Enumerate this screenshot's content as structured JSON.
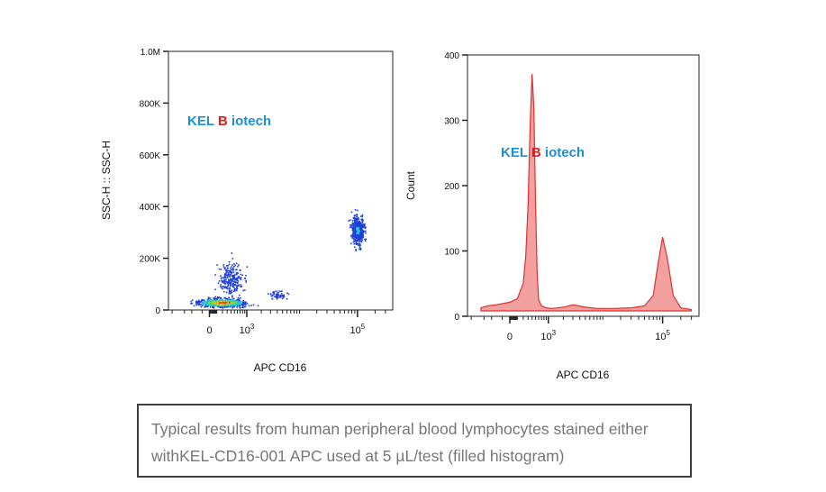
{
  "chart_data": [
    {
      "type": "scatter",
      "title": "",
      "xlabel": "APC CD16",
      "ylabel": "SSC-H :: SSC-H",
      "x_scale": "biexponential",
      "x_ticks": [
        {
          "label": "0",
          "exp": ""
        },
        {
          "label": "10",
          "exp": "3"
        },
        {
          "label": "10",
          "exp": "5"
        }
      ],
      "y_ticks": [
        "0",
        "200K",
        "400K",
        "600K",
        "800K",
        "1.0M"
      ],
      "ylim": [
        0,
        1000000
      ],
      "watermark": {
        "prefix": "KEL",
        "letter": "B",
        "rest": "iotech"
      },
      "populations": [
        {
          "name": "",
          "x_center": 180,
          "y_center": 30000,
          "count": 900
        },
        {
          "name": "",
          "x_center": 400,
          "y_center": 120000,
          "count": 250
        },
        {
          "name": "",
          "x_center": 4000,
          "y_center": 60000,
          "count": 60
        },
        {
          "name": "",
          "x_center": 100000,
          "y_center": 310000,
          "count": 420
        }
      ],
      "density_colors": [
        "#1f3fd8",
        "#27c3e0",
        "#5fdc4e",
        "#f2c21b",
        "#e2401f"
      ]
    },
    {
      "type": "area",
      "title": "",
      "xlabel": "APC CD16",
      "ylabel": "Count",
      "x_scale": "biexponential",
      "x_ticks": [
        {
          "label": "0",
          "exp": ""
        },
        {
          "label": "10",
          "exp": "3"
        },
        {
          "label": "10",
          "exp": "5"
        }
      ],
      "y_ticks": [
        "0",
        "100",
        "200",
        "300",
        "400"
      ],
      "ylim": [
        0,
        400
      ],
      "watermark": {
        "prefix": "KEL",
        "letter": "B",
        "rest": "iotech"
      },
      "series": [
        {
          "name": "",
          "x": [
            -600,
            -400,
            -200,
            0,
            100,
            200,
            250,
            300,
            350,
            400,
            450,
            500,
            550,
            600,
            700,
            900,
            1200,
            2000,
            3000,
            5000,
            8000,
            15000,
            30000,
            50000,
            70000,
            85000,
            100000,
            120000,
            150000,
            200000,
            300000
          ],
          "y": [
            5,
            8,
            10,
            14,
            20,
            45,
            90,
            170,
            300,
            385,
            330,
            170,
            60,
            18,
            8,
            5,
            4,
            6,
            10,
            6,
            4,
            4,
            5,
            8,
            25,
            80,
            120,
            85,
            25,
            5,
            2
          ]
        }
      ],
      "fill_color": "#f2a0a0",
      "line_color": "#e03030"
    }
  ],
  "caption": {
    "line1": "Typical results from human peripheral blood lymphocytes stained either",
    "line2": "withKEL-CD16-001  APC used at 5 µL/test (filled histogram)"
  },
  "colors": {
    "watermark_blue": "#1d8fd6",
    "watermark_red": "#e11d1d",
    "caption_text": "#777777",
    "caption_border": "#3d3d3d"
  }
}
